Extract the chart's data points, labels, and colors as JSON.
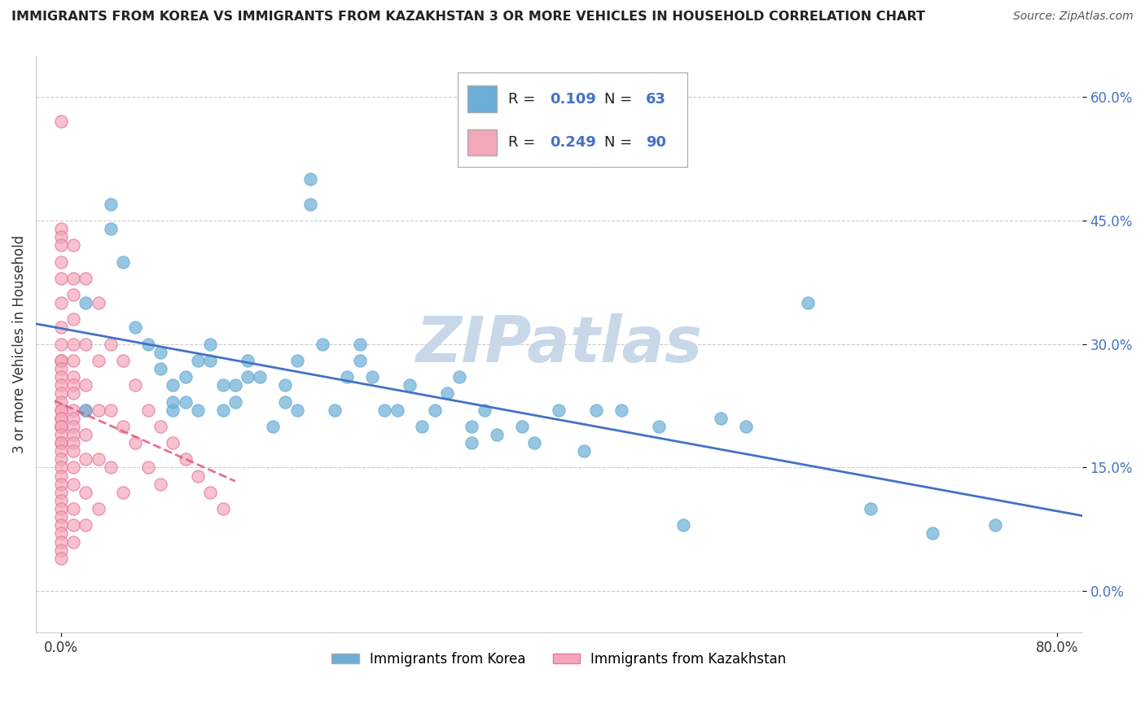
{
  "title": "IMMIGRANTS FROM KOREA VS IMMIGRANTS FROM KAZAKHSTAN 3 OR MORE VEHICLES IN HOUSEHOLD CORRELATION CHART",
  "source": "Source: ZipAtlas.com",
  "ylabel_label": "3 or more Vehicles in Household",
  "y_tick_vals": [
    0.0,
    0.15,
    0.3,
    0.45,
    0.6
  ],
  "y_tick_labels": [
    "0.0%",
    "15.0%",
    "30.0%",
    "45.0%",
    "60.0%"
  ],
  "x_tick_vals": [
    0.0,
    0.8
  ],
  "x_tick_labels": [
    "0.0%",
    "80.0%"
  ],
  "xlim": [
    -0.02,
    0.82
  ],
  "ylim": [
    -0.05,
    0.65
  ],
  "legend_r_korea": "0.109",
  "legend_n_korea": "63",
  "legend_r_kaz": "0.249",
  "legend_n_kaz": "90",
  "korea_color": "#6baed6",
  "korea_color_edge": "#6baed6",
  "kaz_color": "#f4a7b9",
  "kaz_color_edge": "#e377a2",
  "trendline_korea_color": "#4472c4",
  "trendline_kaz_color": "#e05a7a",
  "watermark_color": "#c8d8e8",
  "background_color": "#ffffff",
  "korea_scatter": [
    [
      0.02,
      0.22
    ],
    [
      0.02,
      0.35
    ],
    [
      0.04,
      0.47
    ],
    [
      0.04,
      0.44
    ],
    [
      0.05,
      0.4
    ],
    [
      0.06,
      0.32
    ],
    [
      0.07,
      0.3
    ],
    [
      0.08,
      0.27
    ],
    [
      0.08,
      0.29
    ],
    [
      0.09,
      0.22
    ],
    [
      0.09,
      0.23
    ],
    [
      0.09,
      0.25
    ],
    [
      0.1,
      0.23
    ],
    [
      0.1,
      0.26
    ],
    [
      0.11,
      0.22
    ],
    [
      0.11,
      0.28
    ],
    [
      0.12,
      0.28
    ],
    [
      0.12,
      0.3
    ],
    [
      0.13,
      0.22
    ],
    [
      0.13,
      0.25
    ],
    [
      0.14,
      0.23
    ],
    [
      0.14,
      0.25
    ],
    [
      0.15,
      0.26
    ],
    [
      0.15,
      0.28
    ],
    [
      0.16,
      0.26
    ],
    [
      0.17,
      0.2
    ],
    [
      0.18,
      0.23
    ],
    [
      0.18,
      0.25
    ],
    [
      0.19,
      0.22
    ],
    [
      0.19,
      0.28
    ],
    [
      0.2,
      0.47
    ],
    [
      0.2,
      0.5
    ],
    [
      0.21,
      0.3
    ],
    [
      0.22,
      0.22
    ],
    [
      0.23,
      0.26
    ],
    [
      0.24,
      0.3
    ],
    [
      0.24,
      0.28
    ],
    [
      0.25,
      0.26
    ],
    [
      0.26,
      0.22
    ],
    [
      0.27,
      0.22
    ],
    [
      0.28,
      0.25
    ],
    [
      0.29,
      0.2
    ],
    [
      0.3,
      0.22
    ],
    [
      0.31,
      0.24
    ],
    [
      0.32,
      0.26
    ],
    [
      0.33,
      0.18
    ],
    [
      0.33,
      0.2
    ],
    [
      0.34,
      0.22
    ],
    [
      0.35,
      0.19
    ],
    [
      0.37,
      0.2
    ],
    [
      0.38,
      0.18
    ],
    [
      0.4,
      0.22
    ],
    [
      0.42,
      0.17
    ],
    [
      0.43,
      0.22
    ],
    [
      0.45,
      0.22
    ],
    [
      0.48,
      0.2
    ],
    [
      0.5,
      0.08
    ],
    [
      0.53,
      0.21
    ],
    [
      0.55,
      0.2
    ],
    [
      0.6,
      0.35
    ],
    [
      0.65,
      0.1
    ],
    [
      0.7,
      0.07
    ],
    [
      0.75,
      0.08
    ]
  ],
  "kaz_scatter": [
    [
      0.0,
      0.57
    ],
    [
      0.0,
      0.44
    ],
    [
      0.0,
      0.43
    ],
    [
      0.0,
      0.42
    ],
    [
      0.0,
      0.4
    ],
    [
      0.0,
      0.38
    ],
    [
      0.0,
      0.35
    ],
    [
      0.0,
      0.32
    ],
    [
      0.0,
      0.3
    ],
    [
      0.0,
      0.28
    ],
    [
      0.0,
      0.28
    ],
    [
      0.0,
      0.27
    ],
    [
      0.0,
      0.26
    ],
    [
      0.0,
      0.25
    ],
    [
      0.0,
      0.24
    ],
    [
      0.0,
      0.23
    ],
    [
      0.0,
      0.22
    ],
    [
      0.0,
      0.22
    ],
    [
      0.0,
      0.21
    ],
    [
      0.0,
      0.21
    ],
    [
      0.0,
      0.2
    ],
    [
      0.0,
      0.2
    ],
    [
      0.0,
      0.2
    ],
    [
      0.0,
      0.19
    ],
    [
      0.0,
      0.18
    ],
    [
      0.0,
      0.18
    ],
    [
      0.0,
      0.17
    ],
    [
      0.0,
      0.16
    ],
    [
      0.0,
      0.15
    ],
    [
      0.0,
      0.14
    ],
    [
      0.0,
      0.13
    ],
    [
      0.0,
      0.12
    ],
    [
      0.0,
      0.11
    ],
    [
      0.0,
      0.1
    ],
    [
      0.0,
      0.09
    ],
    [
      0.0,
      0.08
    ],
    [
      0.0,
      0.07
    ],
    [
      0.0,
      0.06
    ],
    [
      0.0,
      0.05
    ],
    [
      0.0,
      0.04
    ],
    [
      0.01,
      0.42
    ],
    [
      0.01,
      0.38
    ],
    [
      0.01,
      0.36
    ],
    [
      0.01,
      0.33
    ],
    [
      0.01,
      0.3
    ],
    [
      0.01,
      0.28
    ],
    [
      0.01,
      0.26
    ],
    [
      0.01,
      0.25
    ],
    [
      0.01,
      0.24
    ],
    [
      0.01,
      0.22
    ],
    [
      0.01,
      0.21
    ],
    [
      0.01,
      0.2
    ],
    [
      0.01,
      0.19
    ],
    [
      0.01,
      0.18
    ],
    [
      0.01,
      0.17
    ],
    [
      0.01,
      0.15
    ],
    [
      0.01,
      0.13
    ],
    [
      0.01,
      0.1
    ],
    [
      0.01,
      0.08
    ],
    [
      0.01,
      0.06
    ],
    [
      0.02,
      0.38
    ],
    [
      0.02,
      0.3
    ],
    [
      0.02,
      0.25
    ],
    [
      0.02,
      0.22
    ],
    [
      0.02,
      0.19
    ],
    [
      0.02,
      0.16
    ],
    [
      0.02,
      0.12
    ],
    [
      0.02,
      0.08
    ],
    [
      0.03,
      0.35
    ],
    [
      0.03,
      0.28
    ],
    [
      0.03,
      0.22
    ],
    [
      0.03,
      0.16
    ],
    [
      0.03,
      0.1
    ],
    [
      0.04,
      0.3
    ],
    [
      0.04,
      0.22
    ],
    [
      0.04,
      0.15
    ],
    [
      0.05,
      0.28
    ],
    [
      0.05,
      0.2
    ],
    [
      0.05,
      0.12
    ],
    [
      0.06,
      0.25
    ],
    [
      0.06,
      0.18
    ],
    [
      0.07,
      0.22
    ],
    [
      0.07,
      0.15
    ],
    [
      0.08,
      0.2
    ],
    [
      0.08,
      0.13
    ],
    [
      0.09,
      0.18
    ],
    [
      0.1,
      0.16
    ],
    [
      0.11,
      0.14
    ],
    [
      0.12,
      0.12
    ],
    [
      0.13,
      0.1
    ]
  ]
}
